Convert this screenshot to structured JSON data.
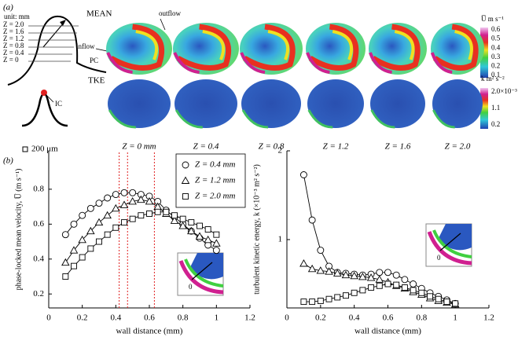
{
  "panel_a": {
    "label": "(a)",
    "schematic": {
      "unit": "unit: mm",
      "z_levels": [
        "Z = 2.0",
        "Z = 1.6",
        "Z = 1.2",
        "Z = 0.8",
        "Z = 0.4",
        "Z = 0"
      ],
      "outflow": "outflow",
      "inflow": "inflow",
      "pc": "PC",
      "ic": "IC",
      "scale": "200 μm"
    },
    "rows": [
      "MEAN",
      "TKE"
    ],
    "columns": [
      "Z = 0 mm",
      "Z = 0.4",
      "Z = 0.8",
      "Z = 1.2",
      "Z = 1.6",
      "Z = 2.0"
    ],
    "colorbars": [
      {
        "title": "U̅  m s⁻¹",
        "ticks": [
          "0.6",
          "0.5",
          "0.4",
          "0.3",
          "0.2",
          "0.1"
        ]
      },
      {
        "title": "k  m² s⁻²",
        "ticks": [
          "2.0×10⁻³",
          "1.1",
          "0.2"
        ]
      }
    ]
  },
  "panel_b": {
    "label": "(b)",
    "inset_label": "0"
  },
  "chart_data": [
    {
      "type": "line",
      "xlabel": "wall distance (mm)",
      "ylabel": "phase-locked mean velocity, U̅ (m s⁻¹)",
      "x": [
        0.1,
        0.15,
        0.2,
        0.25,
        0.3,
        0.35,
        0.4,
        0.45,
        0.5,
        0.55,
        0.6,
        0.65,
        0.7,
        0.75,
        0.8,
        0.85,
        0.9,
        0.95,
        1.0
      ],
      "series": [
        {
          "name": "Z = 0.4 mm",
          "marker": "circle",
          "color": "#000000",
          "values": [
            0.54,
            0.6,
            0.65,
            0.69,
            0.72,
            0.75,
            0.77,
            0.78,
            0.78,
            0.77,
            0.76,
            0.73,
            0.68,
            0.64,
            0.6,
            0.56,
            0.52,
            0.48,
            0.45
          ]
        },
        {
          "name": "Z = 1.2 mm",
          "marker": "triangle",
          "color": "#000000",
          "values": [
            0.38,
            0.45,
            0.51,
            0.56,
            0.61,
            0.65,
            0.69,
            0.71,
            0.73,
            0.74,
            0.73,
            0.7,
            0.66,
            0.62,
            0.59,
            0.56,
            0.53,
            0.51,
            0.49
          ]
        },
        {
          "name": "Z = 2.0 mm",
          "marker": "square",
          "color": "#000000",
          "values": [
            0.3,
            0.36,
            0.41,
            0.46,
            0.5,
            0.54,
            0.58,
            0.61,
            0.63,
            0.65,
            0.66,
            0.67,
            0.67,
            0.65,
            0.63,
            0.61,
            0.59,
            0.57,
            0.54
          ]
        }
      ],
      "vlines": [
        0.42,
        0.47,
        0.63
      ],
      "vline_color": "#e02020",
      "xlim": [
        0,
        1.2
      ],
      "xticks": [
        0,
        0.2,
        0.4,
        0.6,
        0.8,
        1,
        1.2
      ],
      "ylim": [
        0.12,
        1.02
      ],
      "yticks": [
        0.2,
        0.4,
        0.6,
        0.8
      ],
      "legend": "upper right"
    },
    {
      "type": "line",
      "xlabel": "wall distance (mm)",
      "ylabel": "turbulent kinetic energy, k (×10⁻³ m² s⁻²)",
      "x": [
        0.1,
        0.15,
        0.2,
        0.25,
        0.3,
        0.35,
        0.4,
        0.45,
        0.5,
        0.55,
        0.6,
        0.65,
        0.7,
        0.75,
        0.8,
        0.85,
        0.9,
        0.95,
        1.0
      ],
      "series": [
        {
          "marker": "circle",
          "color": "#000000",
          "values": [
            1.73,
            1.22,
            0.88,
            0.7,
            0.63,
            0.62,
            0.61,
            0.6,
            0.61,
            0.63,
            0.63,
            0.6,
            0.55,
            0.5,
            0.45,
            0.4,
            0.36,
            0.32,
            0.28
          ]
        },
        {
          "marker": "triangle",
          "color": "#000000",
          "values": [
            0.73,
            0.67,
            0.65,
            0.64,
            0.62,
            0.6,
            0.59,
            0.58,
            0.57,
            0.55,
            0.52,
            0.48,
            0.45,
            0.41,
            0.38,
            0.34,
            0.31,
            0.29,
            0.27
          ]
        },
        {
          "marker": "square",
          "color": "#000000",
          "values": [
            0.3,
            0.3,
            0.31,
            0.33,
            0.35,
            0.37,
            0.4,
            0.43,
            0.46,
            0.48,
            0.5,
            0.49,
            0.46,
            0.43,
            0.4,
            0.36,
            0.33,
            0.3,
            0.28
          ]
        }
      ],
      "xlim": [
        0,
        1.2
      ],
      "xticks": [
        0,
        0.2,
        0.4,
        0.6,
        0.8,
        1,
        1.2
      ],
      "ylim": [
        0.23,
        2.0
      ],
      "yticks": [
        1,
        2
      ]
    }
  ]
}
